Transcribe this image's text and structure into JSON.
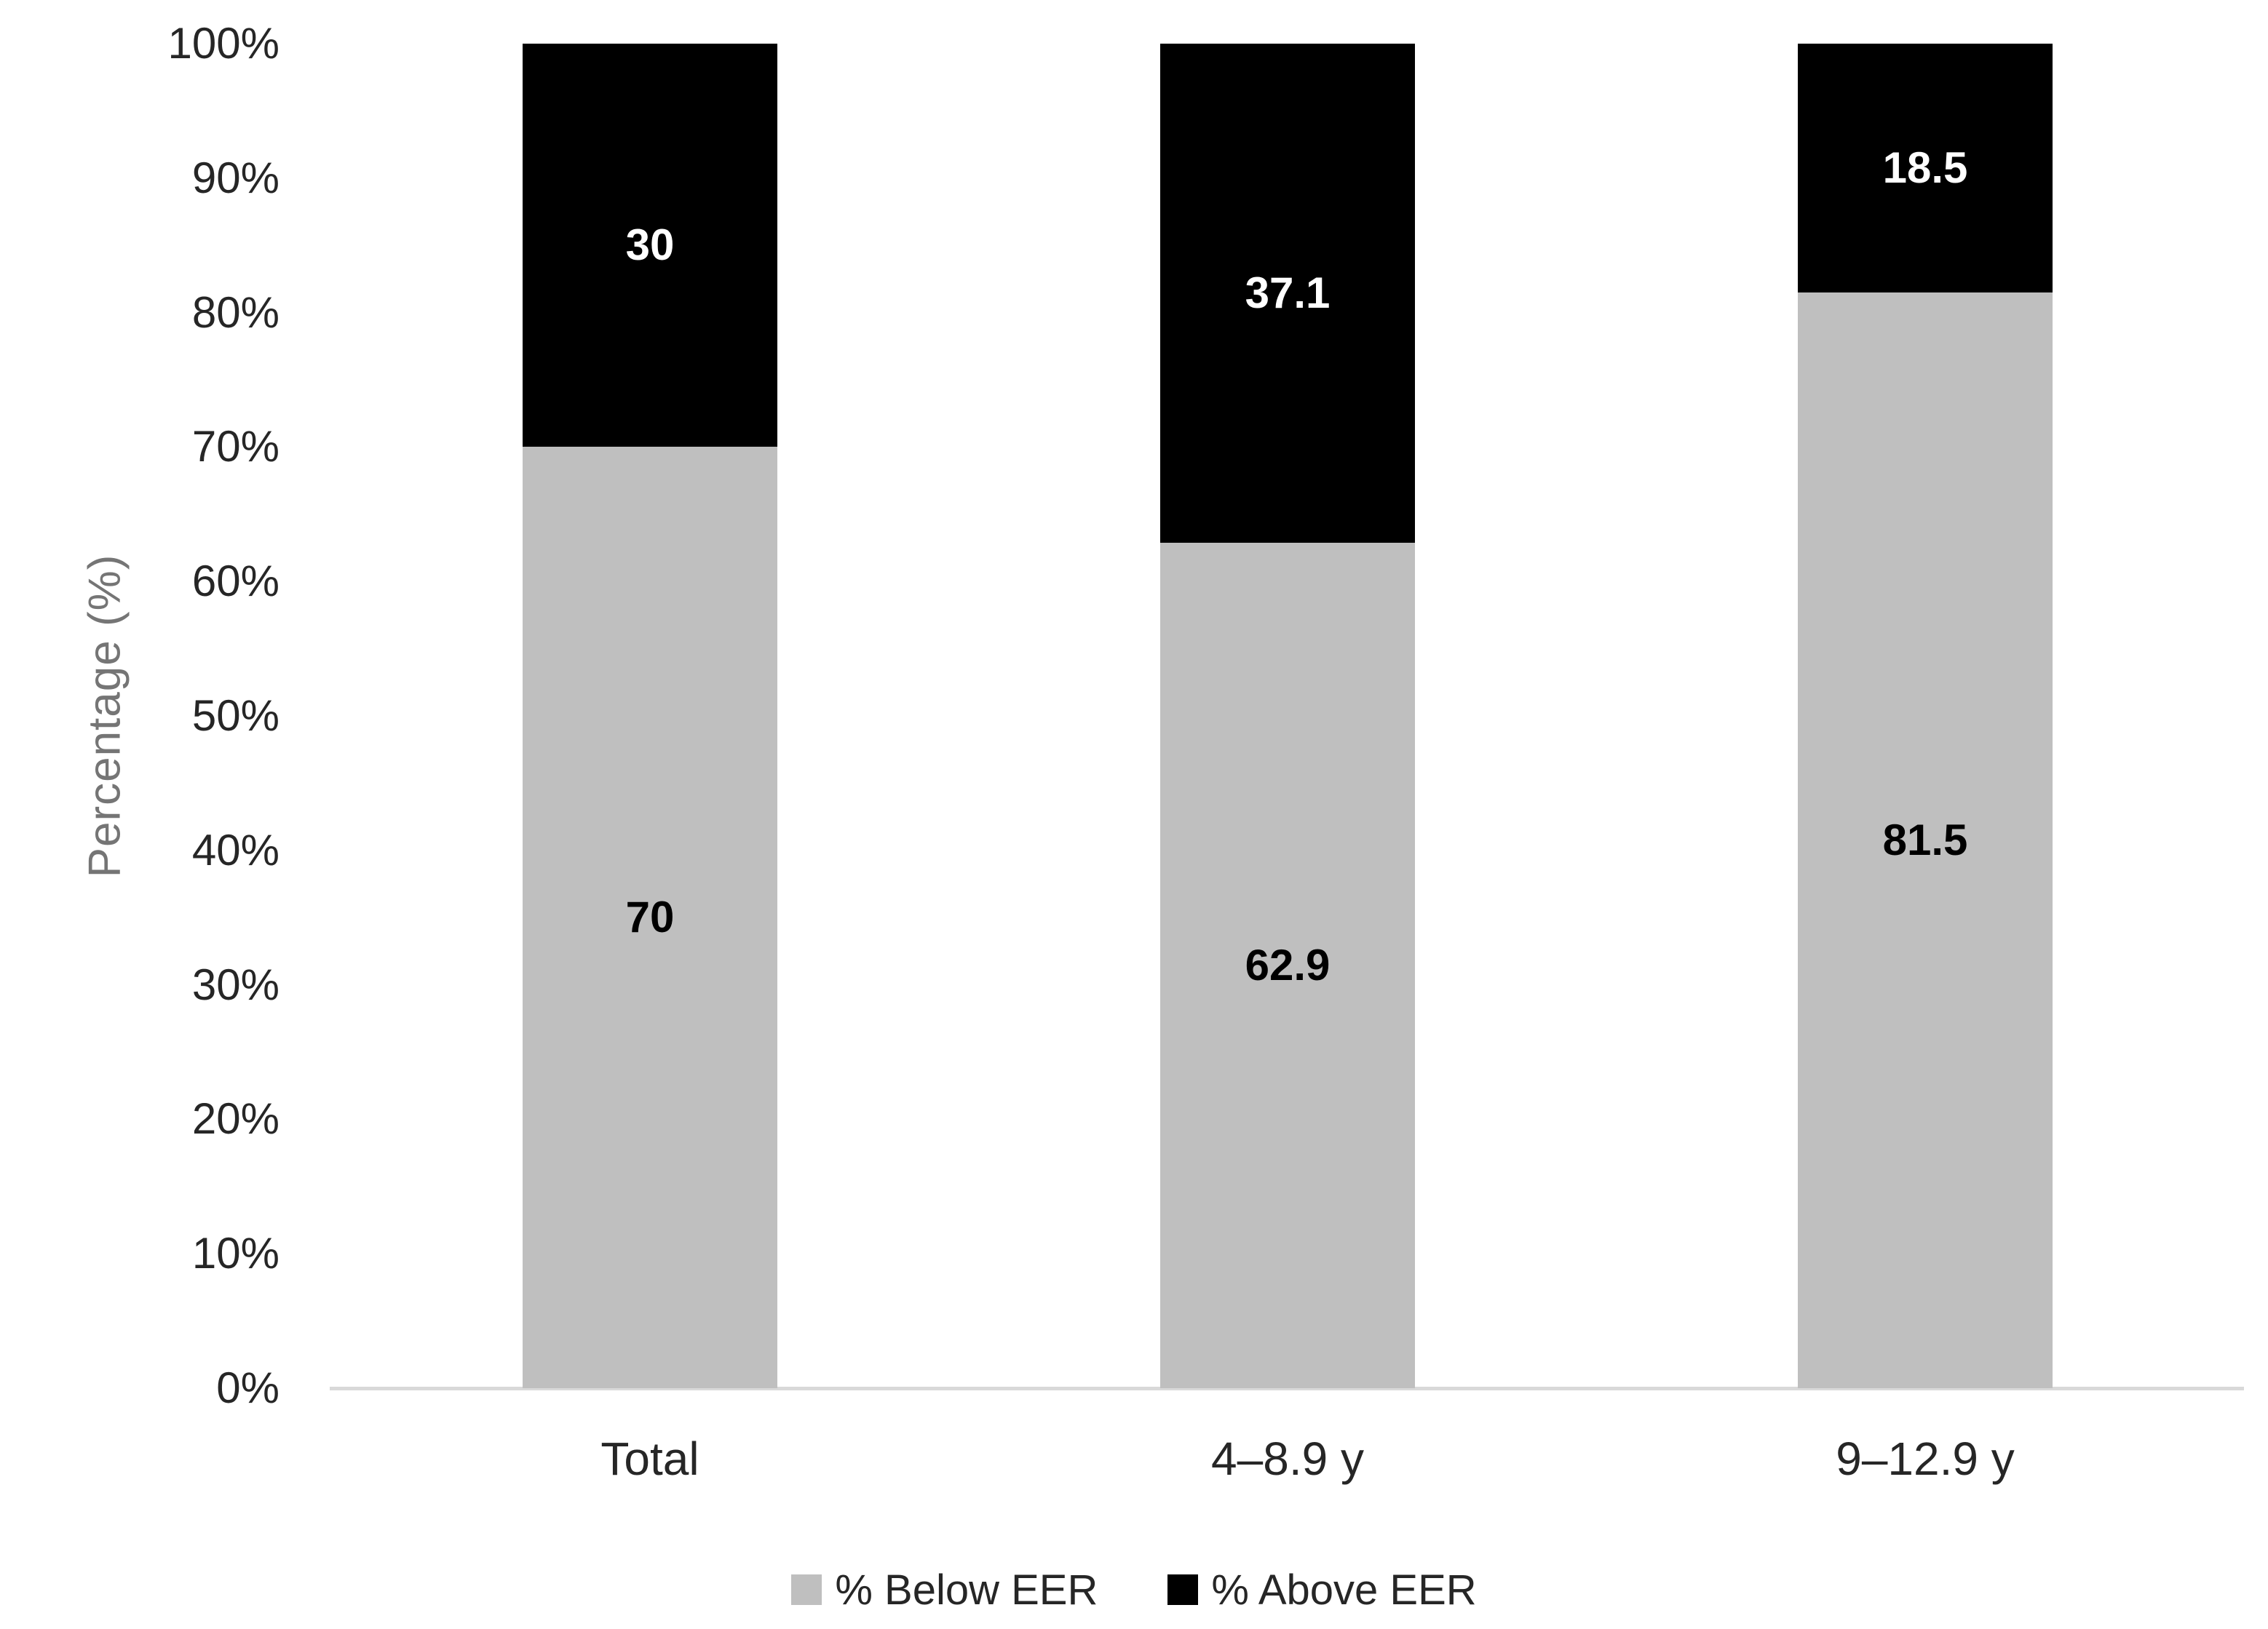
{
  "chart_data": {
    "type": "bar",
    "stacked": true,
    "orientation": "vertical",
    "categories": [
      "Total",
      "4–8.9 y",
      "9–12.9 y"
    ],
    "series": [
      {
        "name": "% Below EER",
        "color": "#bfbfbf",
        "values": [
          70,
          62.9,
          81.5
        ],
        "data_labels": [
          "70",
          "62.9",
          "81.5"
        ],
        "data_label_color": "#000000"
      },
      {
        "name": "% Above EER",
        "color": "#000000",
        "values": [
          30,
          37.1,
          18.5
        ],
        "data_labels": [
          "30",
          "37.1",
          "18.5"
        ],
        "data_label_color": "#ffffff"
      }
    ],
    "title": "",
    "xlabel": "",
    "ylabel": "Percentage (%)",
    "ylim": [
      0,
      100
    ],
    "y_ticks": [
      "0%",
      "10%",
      "20%",
      "30%",
      "40%",
      "50%",
      "60%",
      "70%",
      "80%",
      "90%",
      "100%"
    ],
    "grid": false,
    "legend_position": "bottom"
  },
  "colors": {
    "background": "#ffffff",
    "axis_line": "#d9d9d9",
    "tick_text": "#262626",
    "axis_title_text": "#757575"
  }
}
